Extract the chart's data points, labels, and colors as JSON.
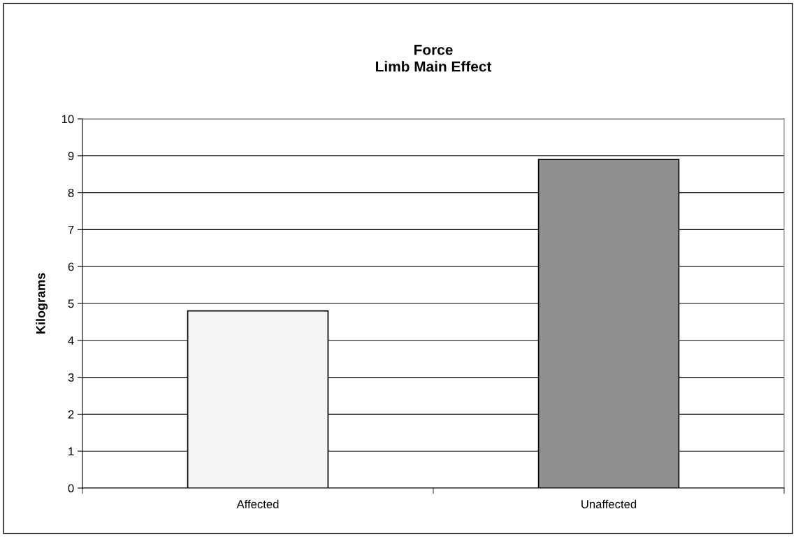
{
  "chart_data": {
    "type": "bar",
    "title": "Force\nLimb Main Effect",
    "ylabel": "Kilograms",
    "categories": [
      "Affected",
      "Unaffected"
    ],
    "values": [
      4.8,
      8.9
    ],
    "colors": [
      "#f4f4f4",
      "#8f8f8f"
    ],
    "ylim": [
      0,
      10
    ],
    "yticks": [
      0,
      1,
      2,
      3,
      4,
      5,
      6,
      7,
      8,
      9,
      10
    ],
    "grid": "y",
    "legend": false
  }
}
